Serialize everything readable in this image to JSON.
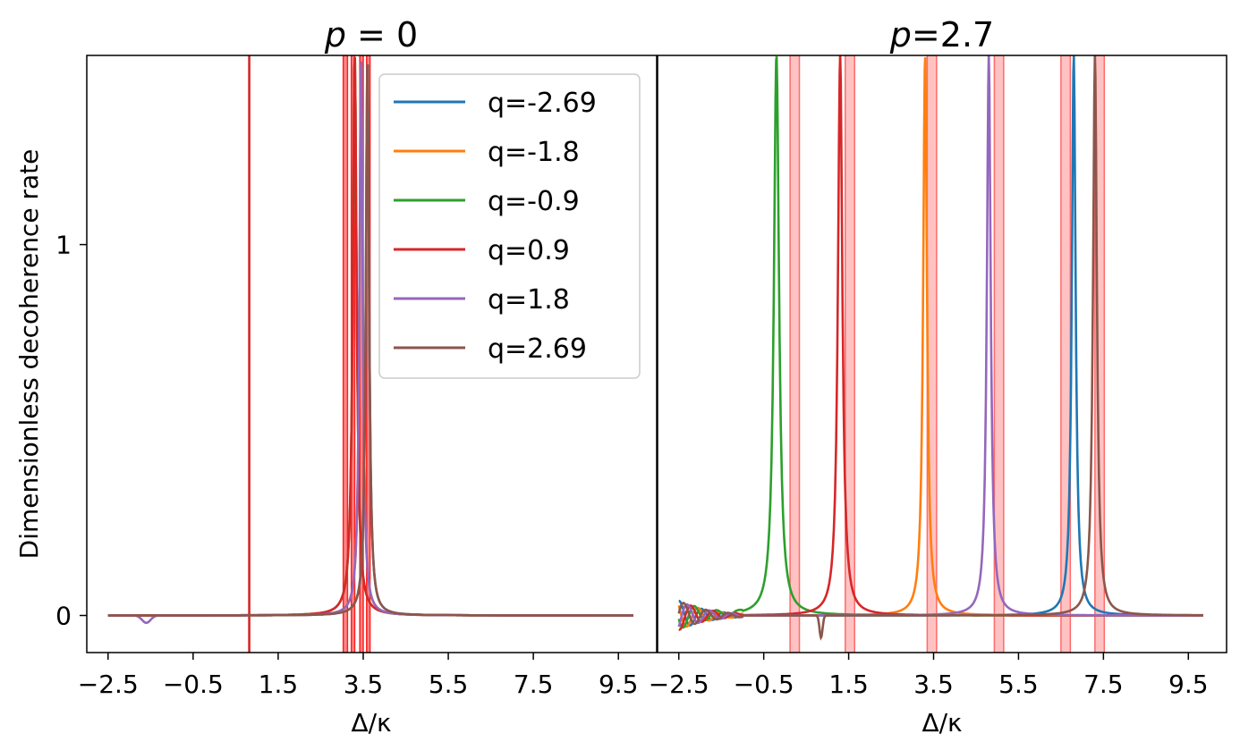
{
  "chart_data": [
    {
      "type": "line",
      "panel": "left",
      "title": "p = 0",
      "title_var": "p",
      "title_rest": " = 0",
      "xlabel": "Δ/κ",
      "ylabel": "Dimensionless decoherence rate",
      "xlim": [
        -3.0,
        10.4
      ],
      "ylim": [
        -0.1,
        1.51
      ],
      "xticks": [
        -2.5,
        -0.5,
        1.5,
        3.5,
        5.5,
        7.5,
        9.5
      ],
      "xtick_labels": [
        "−2.5",
        "−0.5",
        "1.5",
        "3.5",
        "5.5",
        "7.5",
        "9.5"
      ],
      "yticks": [
        0,
        1
      ],
      "ytick_labels": [
        "0",
        "1"
      ],
      "shaded_bands": [
        [
          3.03,
          3.13
        ],
        [
          3.22,
          3.3
        ],
        [
          3.42,
          3.5
        ],
        [
          3.58,
          3.66
        ]
      ],
      "series": [
        {
          "name": "q=-2.69",
          "color": "#1f77b4",
          "center": 3.6,
          "width": 0.25,
          "amp": 1.51
        },
        {
          "name": "q=-1.8",
          "color": "#ff7f0e",
          "center": 3.45,
          "width": 0.25,
          "amp": 1.51
        },
        {
          "name": "q=-0.9",
          "color": "#2ca02c",
          "center": 3.3,
          "width": 0.3,
          "amp": 1.51
        },
        {
          "name": "q=0.9",
          "color": "#d62728",
          "center": 3.3,
          "width": 0.3,
          "amp": 1.51,
          "spike": 0.82
        },
        {
          "name": "q=1.8",
          "color": "#9467bd",
          "center": 3.45,
          "width": 0.25,
          "amp": 1.51,
          "dip": -1.6
        },
        {
          "name": "q=2.69",
          "color": "#8c564b",
          "center": 3.6,
          "width": 0.25,
          "amp": 1.51
        }
      ]
    },
    {
      "type": "line",
      "panel": "right",
      "title": "p=2.7",
      "title_var": "p",
      "title_rest": "=2.7",
      "xlabel": "Δ/κ",
      "xlim": [
        -3.0,
        10.4
      ],
      "ylim": [
        -0.1,
        1.51
      ],
      "xticks": [
        -2.5,
        -0.5,
        1.5,
        3.5,
        5.5,
        7.5,
        9.5
      ],
      "xtick_labels": [
        "−2.5",
        "−0.5",
        "1.5",
        "3.5",
        "5.5",
        "7.5",
        "9.5"
      ],
      "shaded_bands": [
        [
          0.12,
          0.34
        ],
        [
          1.42,
          1.64
        ],
        [
          3.35,
          3.57
        ],
        [
          4.93,
          5.15
        ],
        [
          6.5,
          6.72
        ],
        [
          7.3,
          7.52
        ]
      ],
      "series": [
        {
          "name": "q=-2.69",
          "color": "#1f77b4",
          "center": 6.8,
          "width": 0.3,
          "amp": 1.51
        },
        {
          "name": "q=-1.8",
          "color": "#ff7f0e",
          "center": 3.3,
          "width": 0.3,
          "amp": 1.51
        },
        {
          "name": "q=-0.9",
          "color": "#2ca02c",
          "center": -0.2,
          "width": 0.4,
          "amp": 1.51
        },
        {
          "name": "q=0.9",
          "color": "#d62728",
          "center": 1.3,
          "width": 0.35,
          "amp": 1.51
        },
        {
          "name": "q=1.8",
          "color": "#9467bd",
          "center": 4.8,
          "width": 0.3,
          "amp": 1.51
        },
        {
          "name": "q=2.69",
          "color": "#8c564b",
          "center": 7.3,
          "width": 0.3,
          "amp": 1.51
        }
      ]
    }
  ],
  "legend": {
    "entries": [
      "q=-2.69",
      "q=-1.8",
      "q=-0.9",
      "q=0.9",
      "q=1.8",
      "q=2.69"
    ],
    "colors": [
      "#1f77b4",
      "#ff7f0e",
      "#2ca02c",
      "#d62728",
      "#9467bd",
      "#8c564b"
    ],
    "placement": "top-right of left panel"
  }
}
